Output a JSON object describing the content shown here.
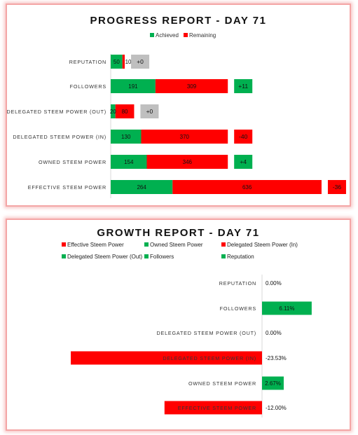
{
  "colors": {
    "achieved": "#00b050",
    "remaining": "#ff0000",
    "neutral": "#bfbfbf",
    "positive": "#00b050",
    "negative": "#ff0000"
  },
  "progress": {
    "title": "PROGRESS REPORT - DAY 71",
    "legend": [
      "Achieved",
      "Remaining"
    ]
  },
  "growth": {
    "title": "GROWTH REPORT - DAY 71",
    "legend": [
      "Effective Steem Power",
      "Owned Steem Power",
      "Delegated Steem Power (In)",
      "Delegated Steem Power (Out)",
      "Followers",
      "Reputation"
    ]
  },
  "chart_data": [
    {
      "type": "bar",
      "orientation": "horizontal",
      "stacked": true,
      "title": "PROGRESS REPORT - DAY 71",
      "categories": [
        "REPUTATION",
        "FOLLOWERS",
        "DELEGATED STEEM POWER (OUT)",
        "DELEGATED STEEM POWER (IN)",
        "OWNED STEEM POWER",
        "EFFECTIVE STEEM POWER"
      ],
      "series": [
        {
          "name": "Achieved",
          "values": [
            50,
            191,
            20,
            130,
            154,
            264
          ]
        },
        {
          "name": "Remaining",
          "values": [
            10,
            309,
            80,
            370,
            346,
            636
          ]
        }
      ],
      "changes": [
        "+0",
        "+11",
        "+0",
        "-40",
        "+4",
        "-36"
      ],
      "legend": "top"
    },
    {
      "type": "bar",
      "orientation": "horizontal",
      "title": "GROWTH REPORT - DAY 71",
      "categories": [
        "REPUTATION",
        "FOLLOWERS",
        "DELEGATED STEEM POWER (OUT)",
        "DELEGATED STEEM POWER (IN)",
        "OWNED STEEM POWER",
        "EFFECTIVE STEEM POWER"
      ],
      "values": [
        0.0,
        6.11,
        0.0,
        -23.53,
        2.67,
        -12.0
      ],
      "labels": [
        "0.00%",
        "6.11%",
        "0.00%",
        "-23.53%",
        "2.67%",
        "-12.00%"
      ],
      "legend": "top"
    }
  ]
}
